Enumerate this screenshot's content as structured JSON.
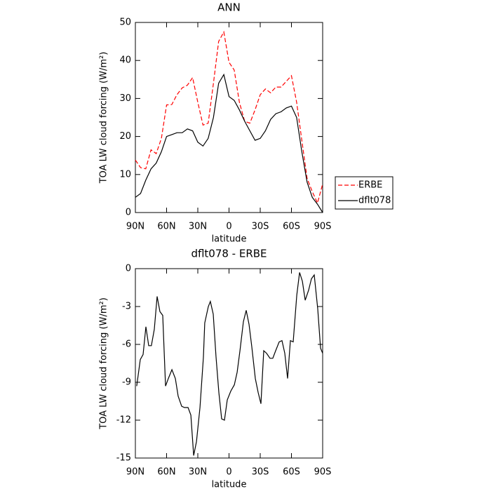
{
  "chart_data": [
    {
      "type": "line",
      "title": "ANN",
      "x_label": "latitude",
      "y_label": "TOA LW cloud forcing (W/m²)",
      "x": [
        90,
        85,
        80,
        75,
        70,
        65,
        60,
        55,
        50,
        45,
        40,
        35,
        30,
        25,
        20,
        15,
        10,
        5,
        0,
        -5,
        -10,
        -15,
        -20,
        -25,
        -30,
        -35,
        -40,
        -45,
        -50,
        -55,
        -60,
        -65,
        -70,
        -75,
        -80,
        -85,
        -90
      ],
      "series": [
        {
          "name": "ERBE",
          "color": "#ff0000",
          "line_style": "dashed",
          "values": [
            13.8,
            11.8,
            11.5,
            16.5,
            15.5,
            19.5,
            28.3,
            28.4,
            31,
            32.8,
            33.5,
            35.5,
            29,
            23,
            23.5,
            34,
            45,
            47.5,
            39.5,
            37.5,
            29,
            24,
            23.5,
            27,
            31,
            32.5,
            31.5,
            33,
            33,
            34.5,
            36,
            29,
            19,
            9,
            5.5,
            2.5,
            7.5
          ]
        },
        {
          "name": "dflt078",
          "color": "#000000",
          "line_style": "solid",
          "values": [
            4,
            5,
            8.5,
            11.5,
            13,
            16,
            20,
            20.5,
            21,
            21,
            22,
            21.5,
            18.5,
            17.5,
            19.5,
            25,
            34,
            36.3,
            30.5,
            29.5,
            27,
            24,
            21.5,
            19,
            19.5,
            21.5,
            24.5,
            26,
            26.5,
            27.5,
            28,
            25,
            16,
            8,
            4,
            2.2,
            0
          ]
        }
      ],
      "xlim": [
        90,
        -90
      ],
      "xticks": [
        {
          "value": 90,
          "label": "90N"
        },
        {
          "value": 60,
          "label": "60N"
        },
        {
          "value": 30,
          "label": "30N"
        },
        0,
        {
          "value": -30,
          "label": "30S"
        },
        {
          "value": -60,
          "label": "60S"
        },
        {
          "value": -90,
          "label": "90S"
        }
      ],
      "ylim": [
        0,
        50
      ],
      "yticks": [
        0,
        10,
        20,
        30,
        40,
        50
      ],
      "legend": "right"
    },
    {
      "type": "line",
      "title": "dflt078 - ERBE",
      "x_label": "latitude",
      "y_label": "TOA LW cloud forcing (W/m²)",
      "x": [
        88.7,
        85.3,
        82.6,
        79.9,
        77.2,
        74.6,
        71.8,
        69.1,
        66.4,
        63.7,
        61.0,
        58.3,
        54.9,
        51.6,
        48.9,
        45.5,
        42.8,
        39.4,
        36.7,
        34.0,
        31.3,
        27.9,
        24.6,
        23.3,
        19.9,
        17.9,
        15.2,
        12.5,
        9.8,
        7.1,
        4.4,
        1.7,
        -1.7,
        -5.1,
        -7.8,
        -10.5,
        -13.8,
        -16.5,
        -19.2,
        -21.9,
        -25.3,
        -28.0,
        -30.7,
        -33.4,
        -36.1,
        -39.4,
        -42.1,
        -44.8,
        -48.2,
        -50.9,
        -53.6,
        -56.3,
        -59.0,
        -61.7,
        -65.1,
        -67.8,
        -70.5,
        -73.2,
        -76.5,
        -79.2,
        -81.9,
        -85.3,
        -88.0,
        -90
      ],
      "series": [
        {
          "name": "dflt078 - ERBE",
          "color": "#000000",
          "line_style": "solid",
          "values": [
            -9.3,
            -7.2,
            -6.8,
            -4.6,
            -6.1,
            -6.1,
            -4.8,
            -2.2,
            -3.4,
            -3.7,
            -9.3,
            -8.7,
            -8,
            -8.7,
            -10.1,
            -10.9,
            -11,
            -11,
            -11.6,
            -14.8,
            -13.7,
            -11,
            -7,
            -4.3,
            -3,
            -2.6,
            -3.6,
            -7,
            -9.8,
            -11.9,
            -12,
            -10.4,
            -9.7,
            -9.2,
            -8.2,
            -6.5,
            -4.2,
            -3.3,
            -4.4,
            -6.2,
            -8.7,
            -9.8,
            -10.7,
            -6.5,
            -6.7,
            -7.1,
            -7.1,
            -6.5,
            -5.8,
            -5.7,
            -6.7,
            -8.7,
            -5.7,
            -5.8,
            -2.1,
            -0.3,
            -1,
            -2.5,
            -1.7,
            -0.8,
            -0.5,
            -3.2,
            -6.3,
            -6.7
          ]
        }
      ],
      "xlim": [
        90,
        -90
      ],
      "xticks": [
        {
          "value": 90,
          "label": "90N"
        },
        {
          "value": 60,
          "label": "60N"
        },
        {
          "value": 30,
          "label": "30N"
        },
        0,
        {
          "value": -30,
          "label": "30S"
        },
        {
          "value": -60,
          "label": "60S"
        },
        {
          "value": -90,
          "label": "90S"
        }
      ],
      "ylim": [
        -15,
        0
      ],
      "yticks": [
        -15,
        -12,
        -9,
        -6,
        -3,
        0
      ]
    }
  ]
}
